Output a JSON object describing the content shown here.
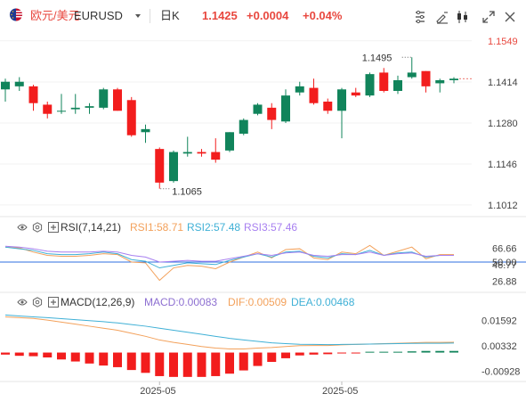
{
  "header": {
    "symbol_name": "欧元/美元",
    "symbol_code": "EURUSD",
    "period": "日K",
    "last_price": "1.1425",
    "change": "+0.0004",
    "change_pct": "+0.04%",
    "icons": [
      "eu-us-flag-icon",
      "dropdown-caret-icon",
      "period-dropdown-icon",
      "indicator-settings-icon",
      "drawing-tool-icon",
      "candle-style-icon",
      "expand-icon",
      "close-icon"
    ]
  },
  "colors": {
    "up": "#11845b",
    "down": "#f21d1d",
    "accent": "#e8483f",
    "rsi1": "#f3a15b",
    "rsi2": "#3fb0d6",
    "rsi3": "#a77ff0",
    "dif": "#f3a15b",
    "dea": "#3fb0d6",
    "macd": "#8d6fd1"
  },
  "rsi": {
    "label": "RSI(7,14,21)",
    "rsi1": "RSI1:58.71",
    "rsi2": "RSI2:57.48",
    "rsi3": "RSI3:57.46"
  },
  "macd": {
    "label": "MACD(12,26,9)",
    "macd": "MACD:0.00083",
    "dif": "DIF:0.00509",
    "dea": "DEA:0.00468"
  },
  "chart_data": [
    {
      "type": "candlestick",
      "title": "EURUSD 日K",
      "y_ticks": [
        "1.1549",
        "1.1414",
        "1.1280",
        "1.1146",
        "1.1012"
      ],
      "ylim": [
        1.1,
        1.156
      ],
      "x_ticks": [
        "2025-05",
        "2025-05"
      ],
      "annotations": {
        "high": "1.1495",
        "low": "1.1065"
      },
      "candles": [
        {
          "o": 1.139,
          "h": 1.1425,
          "l": 1.135,
          "c": 1.1415
        },
        {
          "o": 1.14,
          "h": 1.143,
          "l": 1.1385,
          "c": 1.1415
        },
        {
          "o": 1.14,
          "h": 1.1405,
          "l": 1.132,
          "c": 1.1345
        },
        {
          "o": 1.134,
          "h": 1.135,
          "l": 1.1295,
          "c": 1.131
        },
        {
          "o": 1.132,
          "h": 1.1375,
          "l": 1.131,
          "c": 1.132
        },
        {
          "o": 1.1325,
          "h": 1.1375,
          "l": 1.131,
          "c": 1.133
        },
        {
          "o": 1.133,
          "h": 1.1345,
          "l": 1.131,
          "c": 1.1335
        },
        {
          "o": 1.133,
          "h": 1.1395,
          "l": 1.1325,
          "c": 1.139
        },
        {
          "o": 1.139,
          "h": 1.1395,
          "l": 1.132,
          "c": 1.132
        },
        {
          "o": 1.1355,
          "h": 1.1365,
          "l": 1.1235,
          "c": 1.124
        },
        {
          "o": 1.125,
          "h": 1.1275,
          "l": 1.1215,
          "c": 1.126
        },
        {
          "o": 1.1195,
          "h": 1.12,
          "l": 1.1065,
          "c": 1.1085
        },
        {
          "o": 1.109,
          "h": 1.119,
          "l": 1.1085,
          "c": 1.1185
        },
        {
          "o": 1.118,
          "h": 1.1235,
          "l": 1.117,
          "c": 1.1185
        },
        {
          "o": 1.1185,
          "h": 1.1195,
          "l": 1.117,
          "c": 1.118
        },
        {
          "o": 1.1185,
          "h": 1.123,
          "l": 1.115,
          "c": 1.116
        },
        {
          "o": 1.119,
          "h": 1.125,
          "l": 1.1185,
          "c": 1.125
        },
        {
          "o": 1.1245,
          "h": 1.1295,
          "l": 1.124,
          "c": 1.129
        },
        {
          "o": 1.131,
          "h": 1.1345,
          "l": 1.1305,
          "c": 1.134
        },
        {
          "o": 1.133,
          "h": 1.1345,
          "l": 1.126,
          "c": 1.129
        },
        {
          "o": 1.1285,
          "h": 1.139,
          "l": 1.128,
          "c": 1.137
        },
        {
          "o": 1.138,
          "h": 1.1415,
          "l": 1.137,
          "c": 1.14
        },
        {
          "o": 1.1395,
          "h": 1.1425,
          "l": 1.134,
          "c": 1.1345
        },
        {
          "o": 1.135,
          "h": 1.136,
          "l": 1.131,
          "c": 1.132
        },
        {
          "o": 1.132,
          "h": 1.1395,
          "l": 1.123,
          "c": 1.139
        },
        {
          "o": 1.138,
          "h": 1.1395,
          "l": 1.1365,
          "c": 1.137
        },
        {
          "o": 1.137,
          "h": 1.1445,
          "l": 1.1365,
          "c": 1.144
        },
        {
          "o": 1.1445,
          "h": 1.146,
          "l": 1.138,
          "c": 1.1385
        },
        {
          "o": 1.1385,
          "h": 1.1435,
          "l": 1.1375,
          "c": 1.142
        },
        {
          "o": 1.143,
          "h": 1.1495,
          "l": 1.1425,
          "c": 1.1445
        },
        {
          "o": 1.145,
          "h": 1.145,
          "l": 1.138,
          "c": 1.14
        },
        {
          "o": 1.141,
          "h": 1.1425,
          "l": 1.138,
          "c": 1.142
        },
        {
          "o": 1.142,
          "h": 1.143,
          "l": 1.141,
          "c": 1.1425
        }
      ]
    },
    {
      "type": "line",
      "title": "RSI(7,14,21)",
      "y_ticks": [
        "66.66",
        "50.00",
        "46.77",
        "26.88"
      ],
      "ylim": [
        20,
        80
      ],
      "series": [
        {
          "name": "RSI1",
          "values": [
            68,
            67,
            62,
            58,
            57,
            57,
            58,
            60,
            59,
            50,
            49,
            28,
            43,
            46,
            45,
            42,
            50,
            56,
            62,
            55,
            65,
            66,
            55,
            53,
            62,
            60,
            70,
            58,
            63,
            68,
            54,
            59,
            59
          ]
        },
        {
          "name": "RSI2",
          "values": [
            68,
            66,
            64,
            60,
            59,
            59,
            60,
            62,
            60,
            53,
            51,
            43,
            46,
            49,
            48,
            47,
            52,
            56,
            60,
            56,
            62,
            63,
            57,
            55,
            60,
            59,
            64,
            58,
            61,
            62,
            56,
            58,
            58
          ]
        },
        {
          "name": "RSI3",
          "values": [
            69,
            68,
            66,
            63,
            62,
            62,
            62,
            63,
            62,
            58,
            56,
            50,
            51,
            52,
            51,
            51,
            54,
            57,
            60,
            58,
            61,
            62,
            58,
            57,
            59,
            59,
            62,
            58,
            60,
            61,
            57,
            58,
            58
          ]
        }
      ]
    },
    {
      "type": "bar+line",
      "title": "MACD(12,26,9)",
      "y_ticks": [
        "0.01592",
        "0.00332",
        "-0.00928"
      ],
      "ylim": [
        -0.0125,
        0.02
      ],
      "series": [
        {
          "name": "DIF",
          "values": [
            0.0176,
            0.0172,
            0.0168,
            0.016,
            0.015,
            0.014,
            0.013,
            0.012,
            0.011,
            0.0095,
            0.008,
            0.0062,
            0.005,
            0.004,
            0.003,
            0.0022,
            0.0018,
            0.0018,
            0.0022,
            0.0025,
            0.003,
            0.0034,
            0.0035,
            0.0035,
            0.0038,
            0.004,
            0.0042,
            0.0044,
            0.0046,
            0.0048,
            0.005,
            0.005,
            0.0051
          ]
        },
        {
          "name": "DEA",
          "values": [
            0.0185,
            0.018,
            0.0176,
            0.0172,
            0.0167,
            0.0162,
            0.0157,
            0.0152,
            0.0146,
            0.0138,
            0.013,
            0.012,
            0.011,
            0.01,
            0.009,
            0.008,
            0.007,
            0.0062,
            0.0055,
            0.0048,
            0.0044,
            0.0041,
            0.004,
            0.0039,
            0.004,
            0.0041,
            0.0042,
            0.0043,
            0.0044,
            0.0045,
            0.0046,
            0.0046,
            0.0047
          ]
        },
        {
          "name": "MACD",
          "values": [
            -0.001,
            -0.0016,
            -0.0018,
            -0.0024,
            -0.0034,
            -0.0044,
            -0.0054,
            -0.0064,
            -0.0072,
            -0.0086,
            -0.01,
            -0.0116,
            -0.012,
            -0.012,
            -0.012,
            -0.0116,
            -0.0104,
            -0.0088,
            -0.0066,
            -0.0046,
            -0.0028,
            -0.0014,
            -0.001,
            -0.0008,
            -0.0004,
            -0.0002,
            0.0004,
            0.0004,
            0.0004,
            0.0006,
            0.0008,
            0.0008,
            0.0008
          ]
        }
      ]
    }
  ]
}
